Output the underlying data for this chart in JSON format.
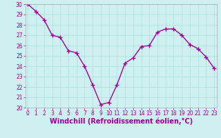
{
  "x": [
    0,
    1,
    2,
    3,
    4,
    5,
    6,
    7,
    8,
    9,
    10,
    11,
    12,
    13,
    14,
    15,
    16,
    17,
    18,
    19,
    20,
    21,
    22,
    23
  ],
  "y": [
    30.0,
    29.3,
    28.5,
    27.0,
    26.8,
    25.5,
    25.3,
    24.0,
    22.2,
    20.3,
    20.5,
    22.2,
    24.3,
    24.8,
    25.9,
    26.0,
    27.3,
    27.6,
    27.6,
    27.0,
    26.1,
    25.7,
    24.9,
    23.8
  ],
  "line_color": "#990099",
  "marker": "+",
  "markersize": 4,
  "linewidth": 1.0,
  "ylim": [
    20,
    30
  ],
  "xlim": [
    -0.3,
    23.3
  ],
  "yticks": [
    20,
    21,
    22,
    23,
    24,
    25,
    26,
    27,
    28,
    29,
    30
  ],
  "xticks": [
    0,
    1,
    2,
    3,
    4,
    5,
    6,
    7,
    8,
    9,
    10,
    11,
    12,
    13,
    14,
    15,
    16,
    17,
    18,
    19,
    20,
    21,
    22,
    23
  ],
  "xlabel": "Windchill (Refroidissement éolien,°C)",
  "bg_color": "#cff0f0",
  "grid_color": "#aadddd",
  "tick_color": "#990099",
  "label_color": "#990099",
  "tick_fontsize": 5.5,
  "xlabel_fontsize": 7,
  "spine_color": "#aaaaaa"
}
